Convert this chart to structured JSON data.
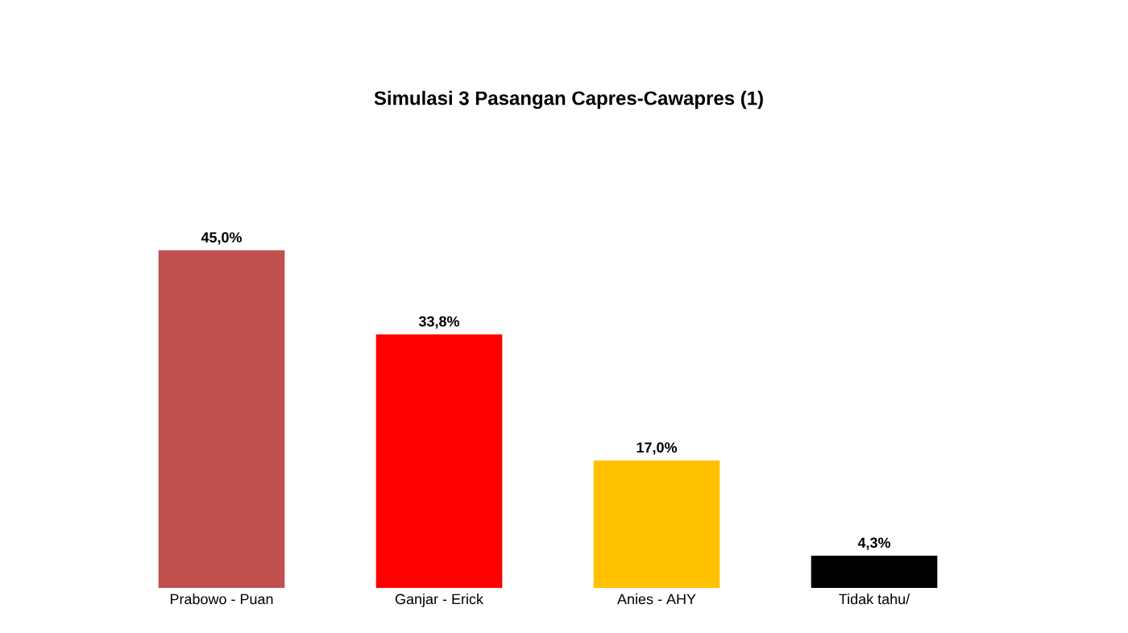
{
  "chart_data": {
    "type": "bar",
    "title": "Simulasi 3 Pasangan Capres-Cawapres (1)",
    "categories": [
      "Prabowo - Puan",
      "Ganjar - Erick",
      "Anies - AHY",
      "Tidak tahu/"
    ],
    "values": [
      45.0,
      33.8,
      17.0,
      4.3
    ],
    "colors": [
      "#c0504d",
      "#ff0000",
      "#ffc000",
      "#000000"
    ],
    "value_labels": [
      "45,0%",
      "33,8%",
      "17,0%",
      "4,3%"
    ]
  }
}
